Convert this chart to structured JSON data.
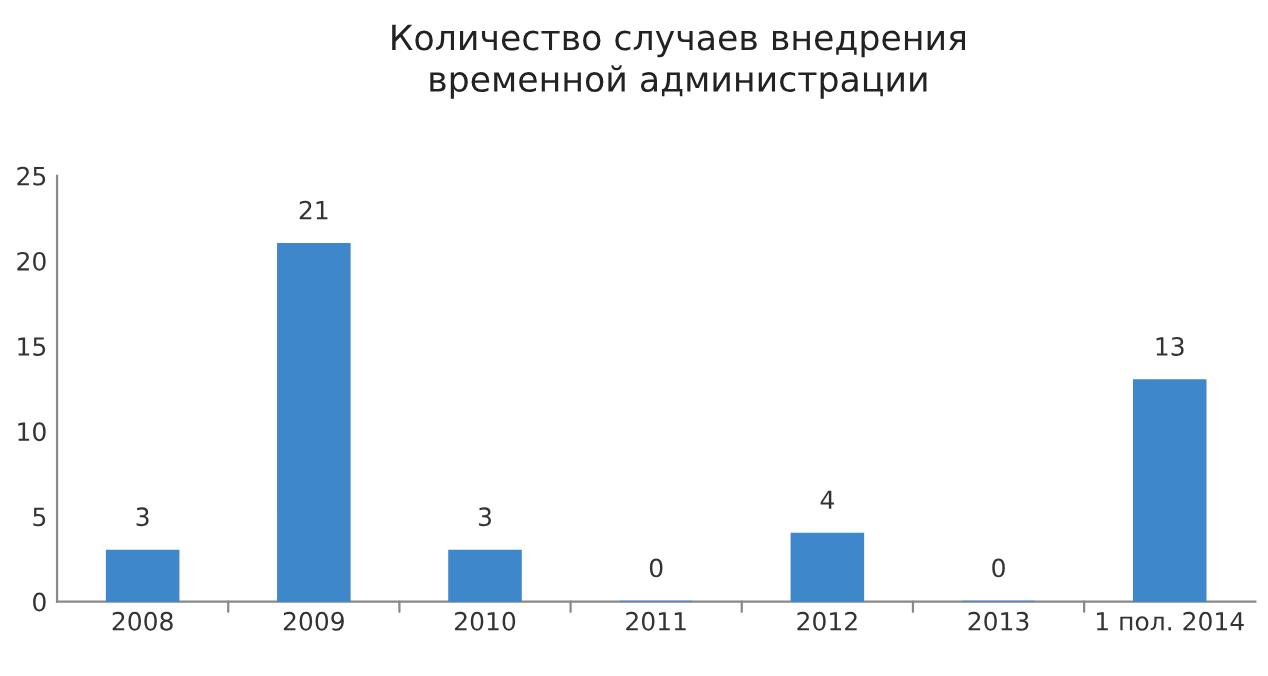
{
  "chart_data": {
    "type": "bar",
    "title": "Количество случаев внедрения\nвременной администрации",
    "categories": [
      "2008",
      "2009",
      "2010",
      "2011",
      "2012",
      "2013",
      "1 пол. 2014"
    ],
    "values": [
      3,
      21,
      3,
      0,
      4,
      0,
      13
    ],
    "color": "#3f87cb",
    "ylim": [
      0,
      25
    ],
    "yticks": [
      0,
      5,
      10,
      15,
      20,
      25
    ],
    "grid": false,
    "data_labels": true
  }
}
